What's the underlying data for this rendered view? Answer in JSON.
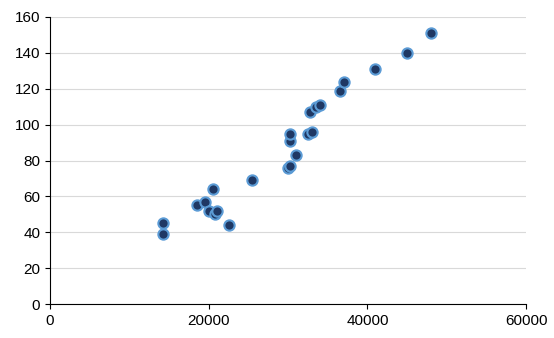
{
  "chart_data": {
    "type": "scatter",
    "x": [
      14200,
      14300,
      18500,
      19500,
      20000,
      20500,
      20800,
      21000,
      22500,
      25500,
      30000,
      30300,
      30200,
      30300,
      31000,
      32500,
      33000,
      32800,
      33500,
      34000,
      36500,
      37000,
      41000,
      45000,
      48000
    ],
    "values": [
      45,
      39,
      55,
      57,
      52,
      64,
      50,
      52,
      44,
      69,
      76,
      77,
      91,
      95,
      83,
      95,
      96,
      107,
      110,
      111,
      119,
      124,
      131,
      140,
      151
    ],
    "color": "#1f3864",
    "marker": "o",
    "xlim": [
      0,
      60000
    ],
    "xticks": [
      0,
      20000,
      40000,
      60000
    ],
    "ylim": [
      0,
      160
    ],
    "yticks": [
      0,
      20,
      40,
      60,
      80,
      100,
      120,
      140,
      160
    ],
    "grid": true
  }
}
